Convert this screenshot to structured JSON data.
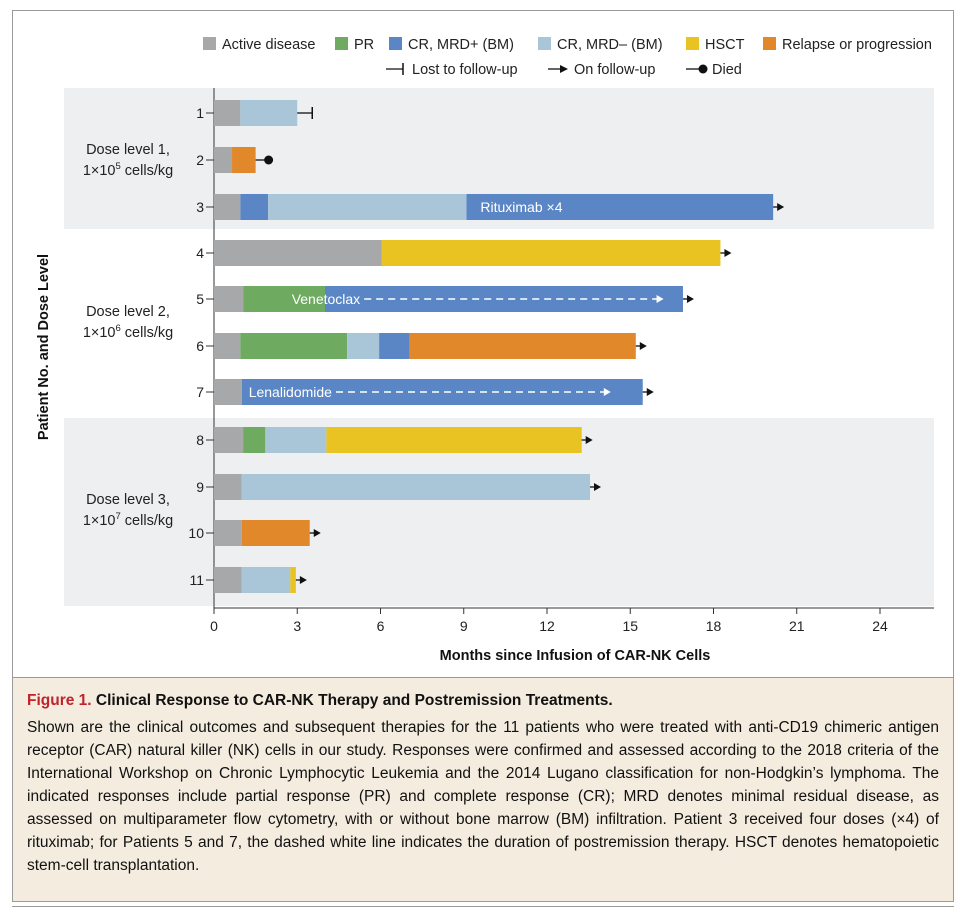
{
  "chart_data": {
    "type": "gantt-bar",
    "y_label": "Patient No. and Dose Level",
    "x_label": "Months since Infusion of CAR-NK Cells",
    "x_ticks": [
      0,
      3,
      6,
      9,
      12,
      15,
      18,
      21,
      24
    ],
    "x_range": [
      0,
      26
    ],
    "legend": {
      "colors": [
        {
          "key": "active",
          "label": "Active disease",
          "color": "#a7a8aa"
        },
        {
          "key": "pr",
          "label": "PR",
          "color": "#6faa61"
        },
        {
          "key": "crpos",
          "label": "CR, MRD+ (BM)",
          "color": "#5b86c5"
        },
        {
          "key": "crneg",
          "label": "CR, MRD– (BM)",
          "color": "#a9c6d8"
        },
        {
          "key": "hsct",
          "label": "HSCT",
          "color": "#e8c322"
        },
        {
          "key": "relapse",
          "label": "Relapse or progression",
          "color": "#e0882a"
        }
      ],
      "markers": [
        {
          "key": "lost",
          "label": "Lost to follow-up"
        },
        {
          "key": "follow",
          "label": "On follow-up"
        },
        {
          "key": "died",
          "label": "Died"
        }
      ]
    },
    "dose_groups": [
      {
        "line1": "Dose level 1,",
        "line2_pre": "1×10",
        "exp": "5",
        "line2_post": " cells/kg",
        "patients": [
          "1",
          "2",
          "3"
        ],
        "shaded": true
      },
      {
        "line1": "Dose level 2,",
        "line2_pre": "1×10",
        "exp": "6",
        "line2_post": " cells/kg",
        "patients": [
          "4",
          "5",
          "6",
          "7"
        ],
        "shaded": false
      },
      {
        "line1": "Dose level 3,",
        "line2_pre": "1×10",
        "exp": "7",
        "line2_post": " cells/kg",
        "patients": [
          "8",
          "9",
          "10",
          "11"
        ],
        "shaded": true
      }
    ],
    "patients": [
      {
        "id": "1",
        "segments": [
          {
            "s": "active",
            "from": 0,
            "to": 0.95
          },
          {
            "s": "crneg",
            "from": 0.95,
            "to": 3.0
          }
        ],
        "end": "lost"
      },
      {
        "id": "2",
        "segments": [
          {
            "s": "active",
            "from": 0,
            "to": 0.65
          },
          {
            "s": "relapse",
            "from": 0.65,
            "to": 1.5
          }
        ],
        "end": "died"
      },
      {
        "id": "3",
        "segments": [
          {
            "s": "active",
            "from": 0,
            "to": 0.95
          },
          {
            "s": "crpos",
            "from": 0.95,
            "to": 1.95
          },
          {
            "s": "crneg",
            "from": 1.95,
            "to": 9.1
          },
          {
            "s": "crpos",
            "from": 9.1,
            "to": 20.15
          }
        ],
        "end": "follow",
        "annotation": {
          "text": "Rituximab ×4",
          "at": 9.6
        }
      },
      {
        "id": "4",
        "segments": [
          {
            "s": "active",
            "from": 0,
            "to": 6.05
          },
          {
            "s": "hsct",
            "from": 6.05,
            "to": 18.25
          }
        ],
        "end": "follow"
      },
      {
        "id": "5",
        "segments": [
          {
            "s": "active",
            "from": 0,
            "to": 1.05
          },
          {
            "s": "pr",
            "from": 1.05,
            "to": 4.0
          },
          {
            "s": "crpos",
            "from": 4.0,
            "to": 16.9
          }
        ],
        "end": "follow",
        "annotation": {
          "text": "Venetoclax",
          "at": 2.8,
          "dash_to": 16.2
        }
      },
      {
        "id": "6",
        "segments": [
          {
            "s": "active",
            "from": 0,
            "to": 0.95
          },
          {
            "s": "pr",
            "from": 0.95,
            "to": 4.8
          },
          {
            "s": "crneg",
            "from": 4.8,
            "to": 5.95
          },
          {
            "s": "crpos",
            "from": 5.95,
            "to": 7.05
          },
          {
            "s": "relapse",
            "from": 7.05,
            "to": 15.2
          }
        ],
        "end": "follow"
      },
      {
        "id": "7",
        "segments": [
          {
            "s": "active",
            "from": 0,
            "to": 1.0
          },
          {
            "s": "crpos",
            "from": 1.0,
            "to": 15.45
          }
        ],
        "end": "follow",
        "annotation": {
          "text": "Lenalidomide",
          "at": 1.25,
          "dash_to": 14.3
        }
      },
      {
        "id": "8",
        "segments": [
          {
            "s": "active",
            "from": 0,
            "to": 1.05
          },
          {
            "s": "pr",
            "from": 1.05,
            "to": 1.85
          },
          {
            "s": "crneg",
            "from": 1.85,
            "to": 4.05
          },
          {
            "s": "hsct",
            "from": 4.05,
            "to": 13.25
          }
        ],
        "end": "follow"
      },
      {
        "id": "9",
        "segments": [
          {
            "s": "active",
            "from": 0,
            "to": 1.0
          },
          {
            "s": "crneg",
            "from": 1.0,
            "to": 13.55
          }
        ],
        "end": "follow"
      },
      {
        "id": "10",
        "segments": [
          {
            "s": "active",
            "from": 0,
            "to": 1.0
          },
          {
            "s": "relapse",
            "from": 1.0,
            "to": 3.45
          }
        ],
        "end": "follow"
      },
      {
        "id": "11",
        "segments": [
          {
            "s": "active",
            "from": 0,
            "to": 1.0
          },
          {
            "s": "crneg",
            "from": 1.0,
            "to": 2.75
          },
          {
            "s": "hsct",
            "from": 2.75,
            "to": 2.95
          }
        ],
        "end": "follow"
      }
    ]
  },
  "caption": {
    "figure_label": "Figure 1.",
    "title": " Clinical Response to CAR-NK Therapy and Postremission Treatments.",
    "text": "Shown are the clinical outcomes and subsequent therapies for the 11 patients who were treated with anti-CD19 chimeric antigen receptor (CAR) natural killer (NK) cells in our study. Responses were confirmed and assessed according to the 2018 criteria of the International Workshop on Chronic Lymphocytic Leukemia and the 2014 Lugano classification for non-Hodgkin’s lymphoma. The indicated responses include partial response (PR) and complete response (CR); MRD denotes minimal residual disease, as assessed on multiparameter flow cytometry, with or without bone marrow (BM) infiltration. Patient 3 received four doses (×4) of rituximab; for Patients 5 and 7, the dashed white line indicates the duration of postremission therapy. HSCT denotes hematopoietic stem-cell transplantation."
  }
}
